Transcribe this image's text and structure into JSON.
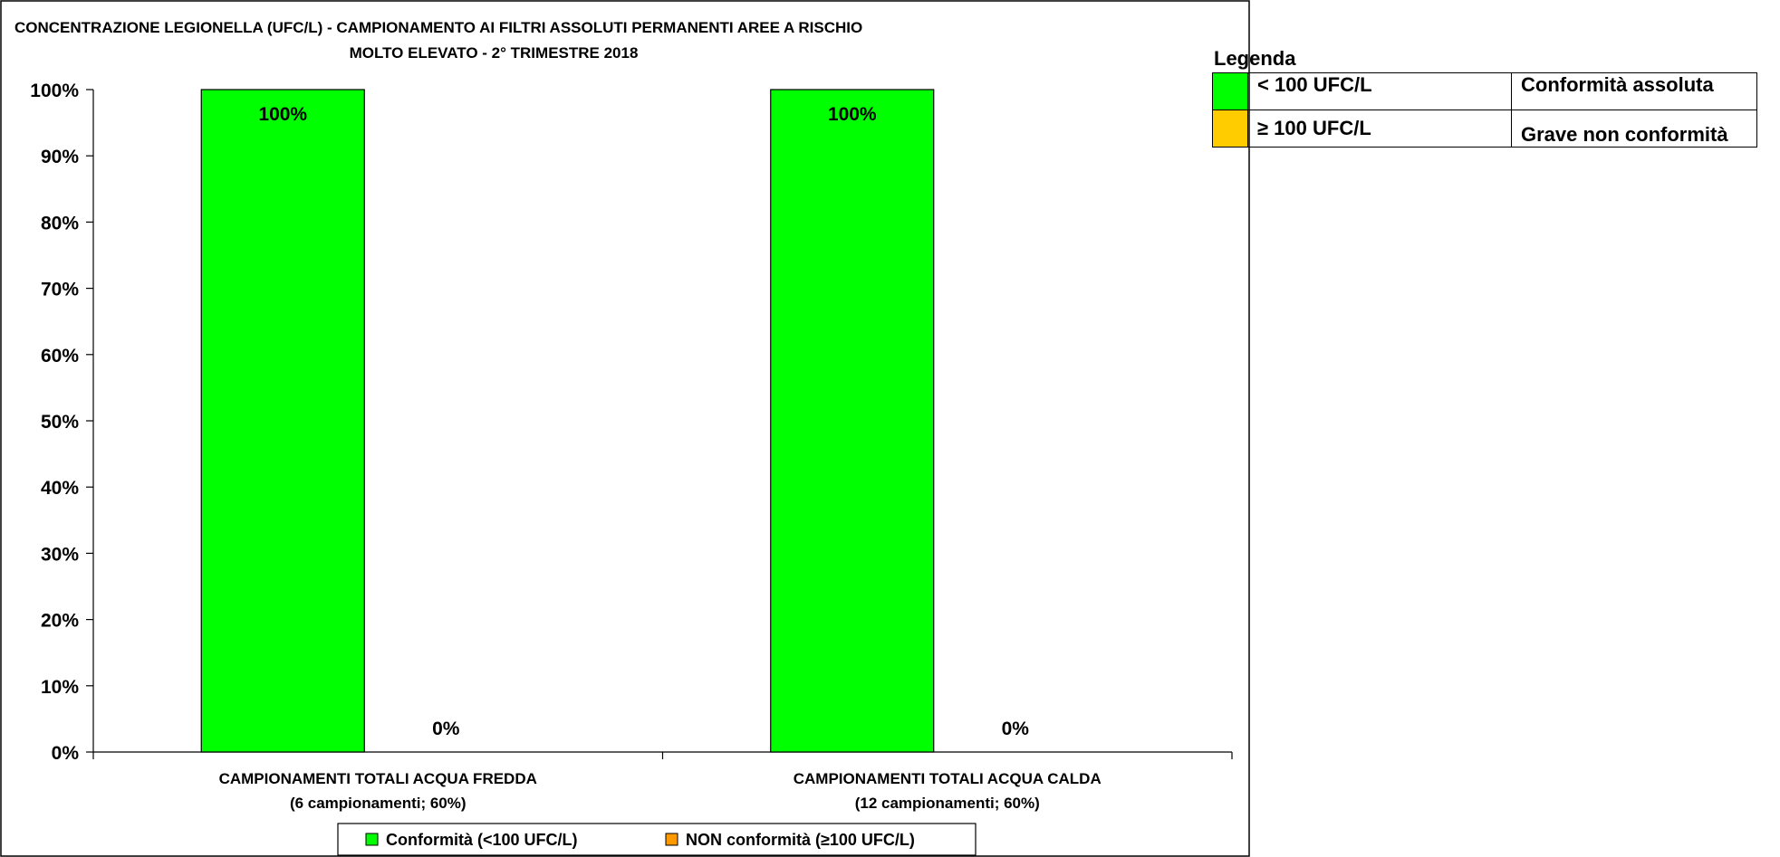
{
  "chart_data": {
    "type": "bar",
    "title": "CONCENTRAZIONE LEGIONELLA (UFC/L) - CAMPIONAMENTO AI FILTRI ASSOLUTI PERMANENTI AREE A RISCHIO",
    "subtitle": "MOLTO ELEVATO -  2° TRIMESTRE 2018",
    "categories": [
      {
        "line1": "CAMPIONAMENTI TOTALI ACQUA FREDDA",
        "line2": "(6 campionamenti; 60%)"
      },
      {
        "line1": "CAMPIONAMENTI TOTALI ACQUA CALDA",
        "line2": "(12 campionamenti; 60%)"
      }
    ],
    "series": [
      {
        "name": "Conformità (<100 UFC/L)",
        "color": "#00ff00",
        "values": [
          100,
          100
        ],
        "label_color": "#000000"
      },
      {
        "name": "NON conformità (≥100 UFC/L)",
        "color": "#ff9900",
        "values": [
          0,
          0
        ],
        "label_color": "#ff6600"
      }
    ],
    "ylim": [
      0,
      100
    ],
    "yticks": [
      0,
      10,
      20,
      30,
      40,
      50,
      60,
      70,
      80,
      90,
      100
    ],
    "y_tick_suffix": "%",
    "data_label_suffix": "%",
    "xlabel": "",
    "ylabel": "",
    "grid": false,
    "legend_position": "bottom"
  },
  "legenda": {
    "title": "Legenda",
    "rows": [
      {
        "color": "#00ff00",
        "range": "< 100 UFC/L",
        "description": "Conformità assoluta"
      },
      {
        "color": "#ffcc00",
        "range": "≥ 100 UFC/L",
        "description": "Grave non conformità"
      }
    ]
  }
}
